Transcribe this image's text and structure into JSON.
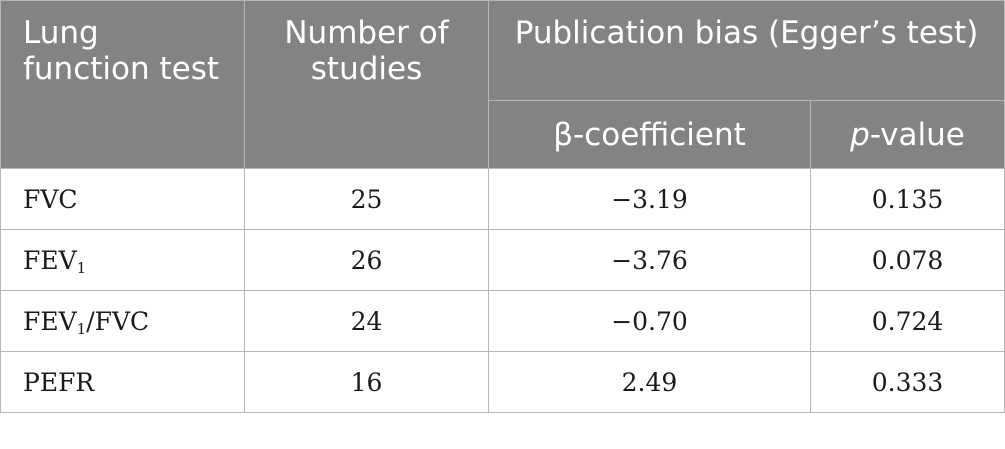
{
  "header": {
    "col1": "Lung function test",
    "col2": "Number of studies",
    "group": "Publication bias (Egger’s test)",
    "sub1": "β-coefficient",
    "sub2_italic": "p",
    "sub2_rest": "-value"
  },
  "rows": [
    {
      "test_base": "FVC",
      "test_sub": "",
      "test_suffix": "",
      "studies": "25",
      "beta": "−3.19",
      "p": "0.135"
    },
    {
      "test_base": "FEV",
      "test_sub": "1",
      "test_suffix": "",
      "studies": "26",
      "beta": "−3.76",
      "p": "0.078"
    },
    {
      "test_base": "FEV",
      "test_sub": "1",
      "test_suffix": "/FVC",
      "studies": "24",
      "beta": "−0.70",
      "p": "0.724"
    },
    {
      "test_base": "PEFR",
      "test_sub": "",
      "test_suffix": "",
      "studies": "16",
      "beta": "2.49",
      "p": "0.333"
    }
  ]
}
